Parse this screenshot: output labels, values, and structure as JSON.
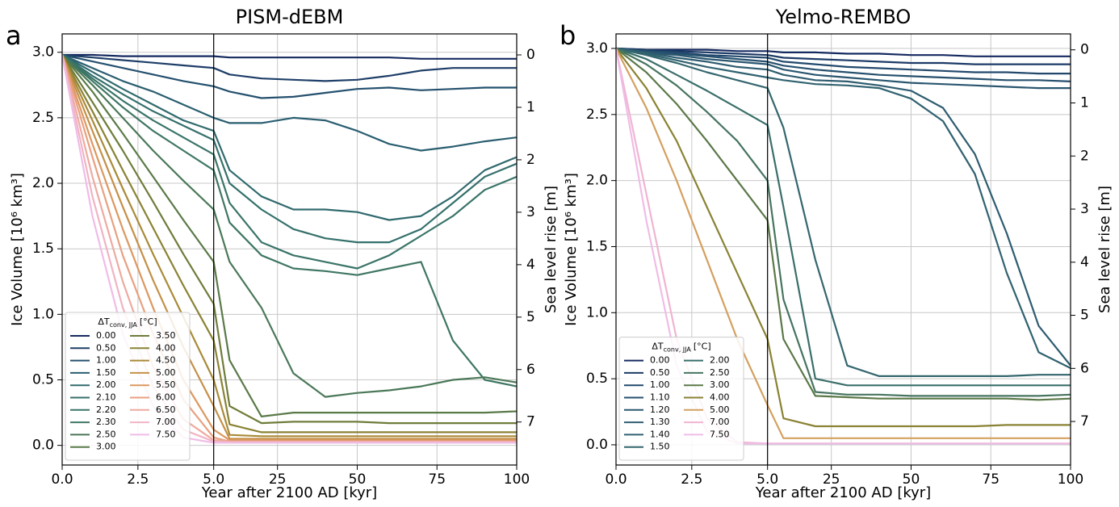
{
  "chart_data": [
    {
      "type": "line",
      "panel_label": "a",
      "title": "PISM-dEBM",
      "xlabel": "Year after 2100 AD [kyr]",
      "ylabel": "Ice Volume [10⁶ km³]",
      "y2label": "Sea level rise [m]",
      "x": [
        0,
        1,
        2,
        3,
        4,
        5,
        10,
        20,
        30,
        40,
        50,
        60,
        70,
        80,
        90,
        100
      ],
      "xlim": [
        0,
        100
      ],
      "xbreak": 5,
      "xticks": [
        {
          "value": 0,
          "label": "0.0"
        },
        2.5,
        {
          "value": 5,
          "label": "5.0"
        },
        25,
        50,
        75,
        100
      ],
      "ylim": [
        -0.15,
        3.14
      ],
      "yticks": [
        {
          "value": 0,
          "label": "0.0"
        },
        0.5,
        {
          "value": 1,
          "label": "1.0"
        },
        1.5,
        {
          "value": 2,
          "label": "2.0"
        },
        2.5,
        {
          "value": 3,
          "label": "3.0"
        }
      ],
      "y2lim": [
        7.82,
        -0.4
      ],
      "y2ticks": [
        0,
        1,
        2,
        3,
        4,
        5,
        6,
        7
      ],
      "grid": true,
      "legend": "lower left",
      "legend_title": {
        "symbol": "ΔT",
        "subscript": "conv, JJA",
        "unit": "[°C]"
      },
      "series": [
        {
          "name": "0.00",
          "color": "#152a60",
          "values": [
            2.98,
            2.98,
            2.97,
            2.97,
            2.97,
            2.97,
            2.96,
            2.96,
            2.96,
            2.96,
            2.96,
            2.96,
            2.95,
            2.95,
            2.95,
            2.95
          ]
        },
        {
          "name": "0.50",
          "color": "#1e3e68",
          "values": [
            2.98,
            2.96,
            2.94,
            2.92,
            2.9,
            2.88,
            2.83,
            2.8,
            2.79,
            2.78,
            2.79,
            2.82,
            2.86,
            2.88,
            2.88,
            2.88
          ]
        },
        {
          "name": "1.00",
          "color": "#24506e",
          "values": [
            2.98,
            2.93,
            2.88,
            2.83,
            2.78,
            2.74,
            2.7,
            2.65,
            2.66,
            2.69,
            2.72,
            2.73,
            2.71,
            2.72,
            2.73,
            2.73
          ]
        },
        {
          "name": "1.50",
          "color": "#2a5e70",
          "values": [
            2.98,
            2.88,
            2.78,
            2.7,
            2.6,
            2.5,
            2.46,
            2.46,
            2.5,
            2.48,
            2.4,
            2.3,
            2.25,
            2.28,
            2.32,
            2.35
          ]
        },
        {
          "name": "2.00",
          "color": "#306a6e",
          "values": [
            2.98,
            2.85,
            2.72,
            2.6,
            2.48,
            2.4,
            2.1,
            1.9,
            1.8,
            1.8,
            1.78,
            1.72,
            1.75,
            1.9,
            2.1,
            2.2
          ]
        },
        {
          "name": "2.10",
          "color": "#35706c",
          "values": [
            2.98,
            2.82,
            2.68,
            2.55,
            2.44,
            2.33,
            2.0,
            1.8,
            1.65,
            1.58,
            1.55,
            1.55,
            1.65,
            1.85,
            2.05,
            2.15
          ]
        },
        {
          "name": "2.20",
          "color": "#3a7468",
          "values": [
            2.98,
            2.8,
            2.63,
            2.48,
            2.35,
            2.22,
            1.85,
            1.55,
            1.45,
            1.4,
            1.35,
            1.45,
            1.6,
            1.75,
            1.95,
            2.05
          ]
        },
        {
          "name": "2.30",
          "color": "#3f7664",
          "values": [
            2.98,
            2.78,
            2.58,
            2.4,
            2.25,
            2.1,
            1.7,
            1.45,
            1.35,
            1.33,
            1.3,
            1.35,
            1.4,
            0.8,
            0.5,
            0.45
          ]
        },
        {
          "name": "2.50",
          "color": "#4a7858",
          "values": [
            2.98,
            2.75,
            2.5,
            2.25,
            2.02,
            1.8,
            1.4,
            1.05,
            0.55,
            0.37,
            0.4,
            0.42,
            0.45,
            0.5,
            0.52,
            0.48
          ]
        },
        {
          "name": "3.00",
          "color": "#5a7a48",
          "values": [
            2.98,
            2.7,
            2.38,
            2.05,
            1.72,
            1.4,
            0.65,
            0.22,
            0.25,
            0.25,
            0.25,
            0.25,
            0.25,
            0.25,
            0.25,
            0.26
          ]
        },
        {
          "name": "3.50",
          "color": "#6e7c3a",
          "values": [
            2.98,
            2.62,
            2.25,
            1.86,
            1.46,
            1.08,
            0.3,
            0.17,
            0.18,
            0.18,
            0.18,
            0.17,
            0.17,
            0.17,
            0.17,
            0.17
          ]
        },
        {
          "name": "4.00",
          "color": "#8a8234",
          "values": [
            2.98,
            2.55,
            2.1,
            1.66,
            1.22,
            0.8,
            0.16,
            0.1,
            0.1,
            0.1,
            0.1,
            0.1,
            0.1,
            0.1,
            0.1,
            0.1
          ]
        },
        {
          "name": "4.50",
          "color": "#a88a38",
          "values": [
            2.98,
            2.48,
            1.96,
            1.46,
            0.98,
            0.5,
            0.08,
            0.07,
            0.07,
            0.07,
            0.07,
            0.07,
            0.07,
            0.07,
            0.07,
            0.07
          ]
        },
        {
          "name": "5.00",
          "color": "#c49048",
          "values": [
            2.98,
            2.4,
            1.82,
            1.26,
            0.75,
            0.3,
            0.05,
            0.05,
            0.05,
            0.05,
            0.05,
            0.05,
            0.05,
            0.05,
            0.05,
            0.05
          ]
        },
        {
          "name": "5.50",
          "color": "#dc9860",
          "values": [
            2.98,
            2.3,
            1.65,
            1.05,
            0.5,
            0.12,
            0.04,
            0.04,
            0.04,
            0.04,
            0.04,
            0.04,
            0.04,
            0.04,
            0.04,
            0.04
          ]
        },
        {
          "name": "6.00",
          "color": "#e8a080",
          "values": [
            2.98,
            2.2,
            1.45,
            0.85,
            0.35,
            0.06,
            0.03,
            0.03,
            0.03,
            0.03,
            0.03,
            0.03,
            0.03,
            0.03,
            0.03,
            0.03
          ]
        },
        {
          "name": "6.50",
          "color": "#eeaaa0",
          "values": [
            2.98,
            2.05,
            1.25,
            0.6,
            0.2,
            0.04,
            0.03,
            0.03,
            0.03,
            0.03,
            0.03,
            0.03,
            0.03,
            0.03,
            0.03,
            0.03
          ]
        },
        {
          "name": "7.00",
          "color": "#f0b4c4",
          "values": [
            2.98,
            1.9,
            1.05,
            0.45,
            0.12,
            0.03,
            0.02,
            0.02,
            0.02,
            0.02,
            0.02,
            0.02,
            0.02,
            0.02,
            0.02,
            0.02
          ]
        },
        {
          "name": "7.50",
          "color": "#f0bce6",
          "values": [
            2.98,
            1.75,
            0.85,
            0.3,
            0.06,
            0.02,
            0.02,
            0.02,
            0.02,
            0.02,
            0.02,
            0.02,
            0.02,
            0.02,
            0.02,
            0.02
          ]
        }
      ]
    },
    {
      "type": "line",
      "panel_label": "b",
      "title": "Yelmo-REMBO",
      "xlabel": "Year after 2100 AD [kyr]",
      "ylabel": "Ice Volume [10⁶ km³]",
      "y2label": "Sea level rise [m]",
      "x": [
        0,
        1,
        2,
        3,
        4,
        5,
        10,
        20,
        30,
        40,
        50,
        60,
        70,
        80,
        90,
        100
      ],
      "xlim": [
        0,
        100
      ],
      "xbreak": 5,
      "xticks": [
        {
          "value": 0,
          "label": "0.0"
        },
        2.5,
        {
          "value": 5,
          "label": "5.0"
        },
        25,
        50,
        75,
        100
      ],
      "ylim": [
        -0.153,
        3.11
      ],
      "yticks": [
        {
          "value": 0,
          "label": "0.0"
        },
        0.5,
        {
          "value": 1,
          "label": "1.0"
        },
        1.5,
        {
          "value": 2,
          "label": "2.0"
        },
        2.5,
        {
          "value": 3,
          "label": "3.0"
        }
      ],
      "y2lim": [
        7.82,
        -0.3
      ],
      "y2ticks": [
        0,
        1,
        2,
        3,
        4,
        5,
        6,
        7
      ],
      "grid": true,
      "legend": "lower left",
      "legend_title": {
        "symbol": "ΔT",
        "subscript": "conv, JJA",
        "unit": "[°C]"
      },
      "series": [
        {
          "name": "0.00",
          "color": "#152a60",
          "values": [
            3.0,
            2.99,
            2.99,
            2.99,
            2.98,
            2.98,
            2.97,
            2.97,
            2.96,
            2.96,
            2.95,
            2.95,
            2.94,
            2.94,
            2.94,
            2.94
          ]
        },
        {
          "name": "0.50",
          "color": "#1c3a66",
          "values": [
            3.0,
            2.99,
            2.98,
            2.97,
            2.96,
            2.95,
            2.93,
            2.92,
            2.91,
            2.9,
            2.89,
            2.89,
            2.88,
            2.88,
            2.88,
            2.88
          ]
        },
        {
          "name": "1.00",
          "color": "#22486c",
          "values": [
            3.0,
            2.98,
            2.97,
            2.95,
            2.94,
            2.93,
            2.9,
            2.88,
            2.86,
            2.85,
            2.84,
            2.83,
            2.82,
            2.82,
            2.81,
            2.81
          ]
        },
        {
          "name": "1.10",
          "color": "#26506e",
          "values": [
            3.0,
            2.98,
            2.96,
            2.94,
            2.92,
            2.9,
            2.87,
            2.84,
            2.82,
            2.8,
            2.79,
            2.78,
            2.77,
            2.76,
            2.76,
            2.75
          ]
        },
        {
          "name": "1.20",
          "color": "#2a5670",
          "values": [
            3.0,
            2.97,
            2.95,
            2.92,
            2.9,
            2.88,
            2.84,
            2.8,
            2.78,
            2.76,
            2.74,
            2.73,
            2.72,
            2.71,
            2.7,
            2.7
          ]
        },
        {
          "name": "1.30",
          "color": "#2e5c70",
          "values": [
            3.0,
            2.97,
            2.93,
            2.9,
            2.86,
            2.84,
            2.8,
            2.76,
            2.75,
            2.72,
            2.68,
            2.55,
            2.2,
            1.6,
            0.9,
            0.6
          ]
        },
        {
          "name": "1.40",
          "color": "#316270",
          "values": [
            3.0,
            2.96,
            2.91,
            2.86,
            2.82,
            2.78,
            2.76,
            2.73,
            2.72,
            2.7,
            2.62,
            2.45,
            2.05,
            1.3,
            0.7,
            0.58
          ]
        },
        {
          "name": "1.50",
          "color": "#34666e",
          "values": [
            3.0,
            2.95,
            2.89,
            2.82,
            2.76,
            2.7,
            2.4,
            1.4,
            0.6,
            0.52,
            0.52,
            0.52,
            0.52,
            0.52,
            0.53,
            0.53
          ]
        },
        {
          "name": "2.00",
          "color": "#3a6e6a",
          "values": [
            3.0,
            2.92,
            2.8,
            2.68,
            2.55,
            2.42,
            1.8,
            0.5,
            0.45,
            0.45,
            0.45,
            0.45,
            0.45,
            0.45,
            0.45,
            0.45
          ]
        },
        {
          "name": "2.50",
          "color": "#467460",
          "values": [
            3.0,
            2.88,
            2.72,
            2.52,
            2.3,
            2.0,
            1.1,
            0.4,
            0.38,
            0.38,
            0.37,
            0.37,
            0.37,
            0.37,
            0.37,
            0.38
          ]
        },
        {
          "name": "3.00",
          "color": "#5a7848",
          "values": [
            3.0,
            2.82,
            2.58,
            2.3,
            2.0,
            1.7,
            0.8,
            0.37,
            0.36,
            0.35,
            0.35,
            0.35,
            0.35,
            0.35,
            0.34,
            0.35
          ]
        },
        {
          "name": "4.00",
          "color": "#8a8234",
          "values": [
            3.0,
            2.7,
            2.3,
            1.8,
            1.3,
            0.8,
            0.2,
            0.14,
            0.14,
            0.14,
            0.14,
            0.14,
            0.14,
            0.15,
            0.15,
            0.15
          ]
        },
        {
          "name": "5.00",
          "color": "#d4a060",
          "values": [
            3.0,
            2.55,
            2.0,
            1.4,
            0.8,
            0.3,
            0.05,
            0.05,
            0.05,
            0.05,
            0.05,
            0.05,
            0.05,
            0.05,
            0.05,
            0.05
          ]
        },
        {
          "name": "7.00",
          "color": "#f0b4d0",
          "values": [
            3.0,
            1.9,
            0.8,
            0.2,
            0.02,
            0.01,
            0.01,
            0.01,
            0.01,
            0.01,
            0.01,
            0.01,
            0.01,
            0.01,
            0.01,
            0.01
          ]
        },
        {
          "name": "7.50",
          "color": "#f0bce6",
          "values": [
            3.0,
            1.7,
            0.6,
            0.1,
            0.01,
            0.01,
            0.01,
            0.01,
            0.01,
            0.01,
            0.01,
            0.01,
            0.01,
            0.01,
            0.01,
            0.01
          ]
        }
      ]
    }
  ]
}
